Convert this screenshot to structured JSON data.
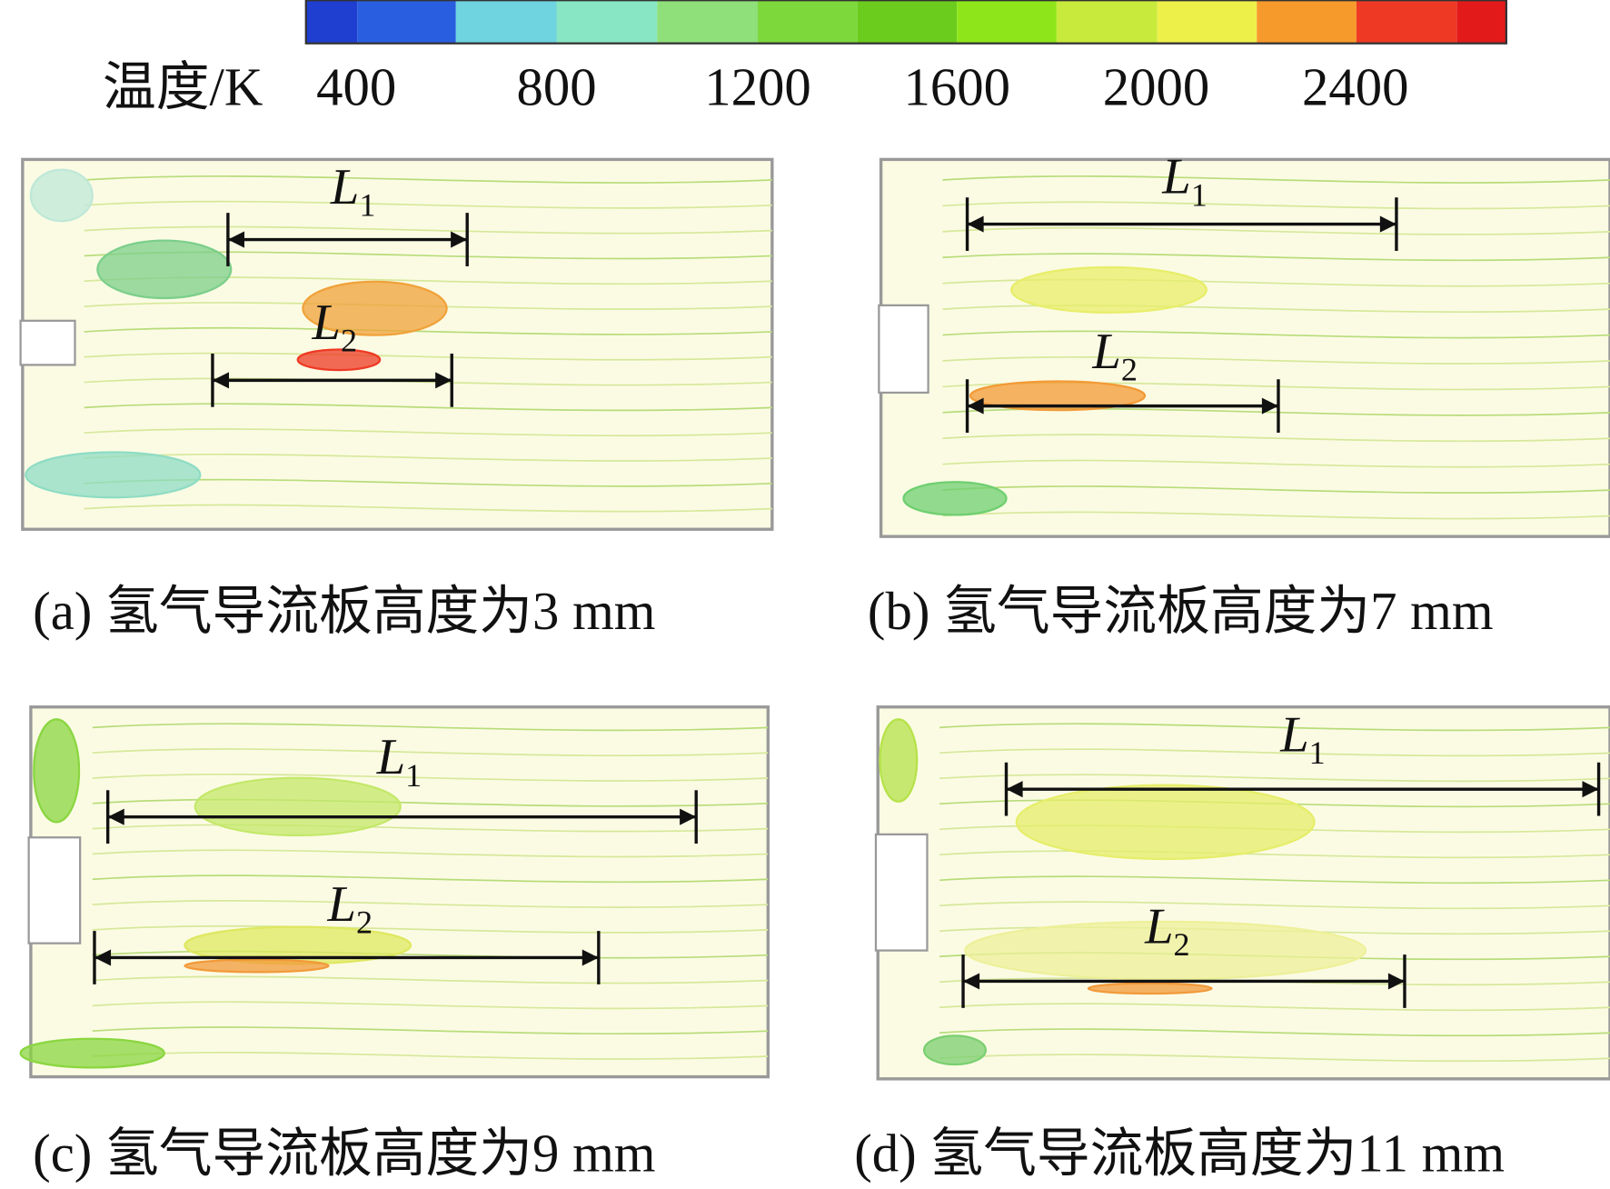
{
  "colorbar": {
    "title": "温度/K",
    "ticks": [
      400,
      800,
      1200,
      1600,
      2000,
      2400
    ]
  },
  "panels": [
    {
      "caption": "(a) 氢气导流板高度为3 mm",
      "lengths": [
        {
          "symbol": "L",
          "subscript": "1"
        },
        {
          "symbol": "L",
          "subscript": "2"
        }
      ]
    },
    {
      "caption": "(b) 氢气导流板高度为7 mm",
      "lengths": [
        {
          "symbol": "L",
          "subscript": "1"
        },
        {
          "symbol": "L",
          "subscript": "2"
        }
      ]
    },
    {
      "caption": "(c) 氢气导流板高度为9 mm",
      "lengths": [
        {
          "symbol": "L",
          "subscript": "1"
        },
        {
          "symbol": "L",
          "subscript": "2"
        }
      ]
    },
    {
      "caption": "(d) 氢气导流板高度为11 mm",
      "lengths": [
        {
          "symbol": "L",
          "subscript": "1"
        },
        {
          "symbol": "L",
          "subscript": "2"
        }
      ]
    }
  ]
}
